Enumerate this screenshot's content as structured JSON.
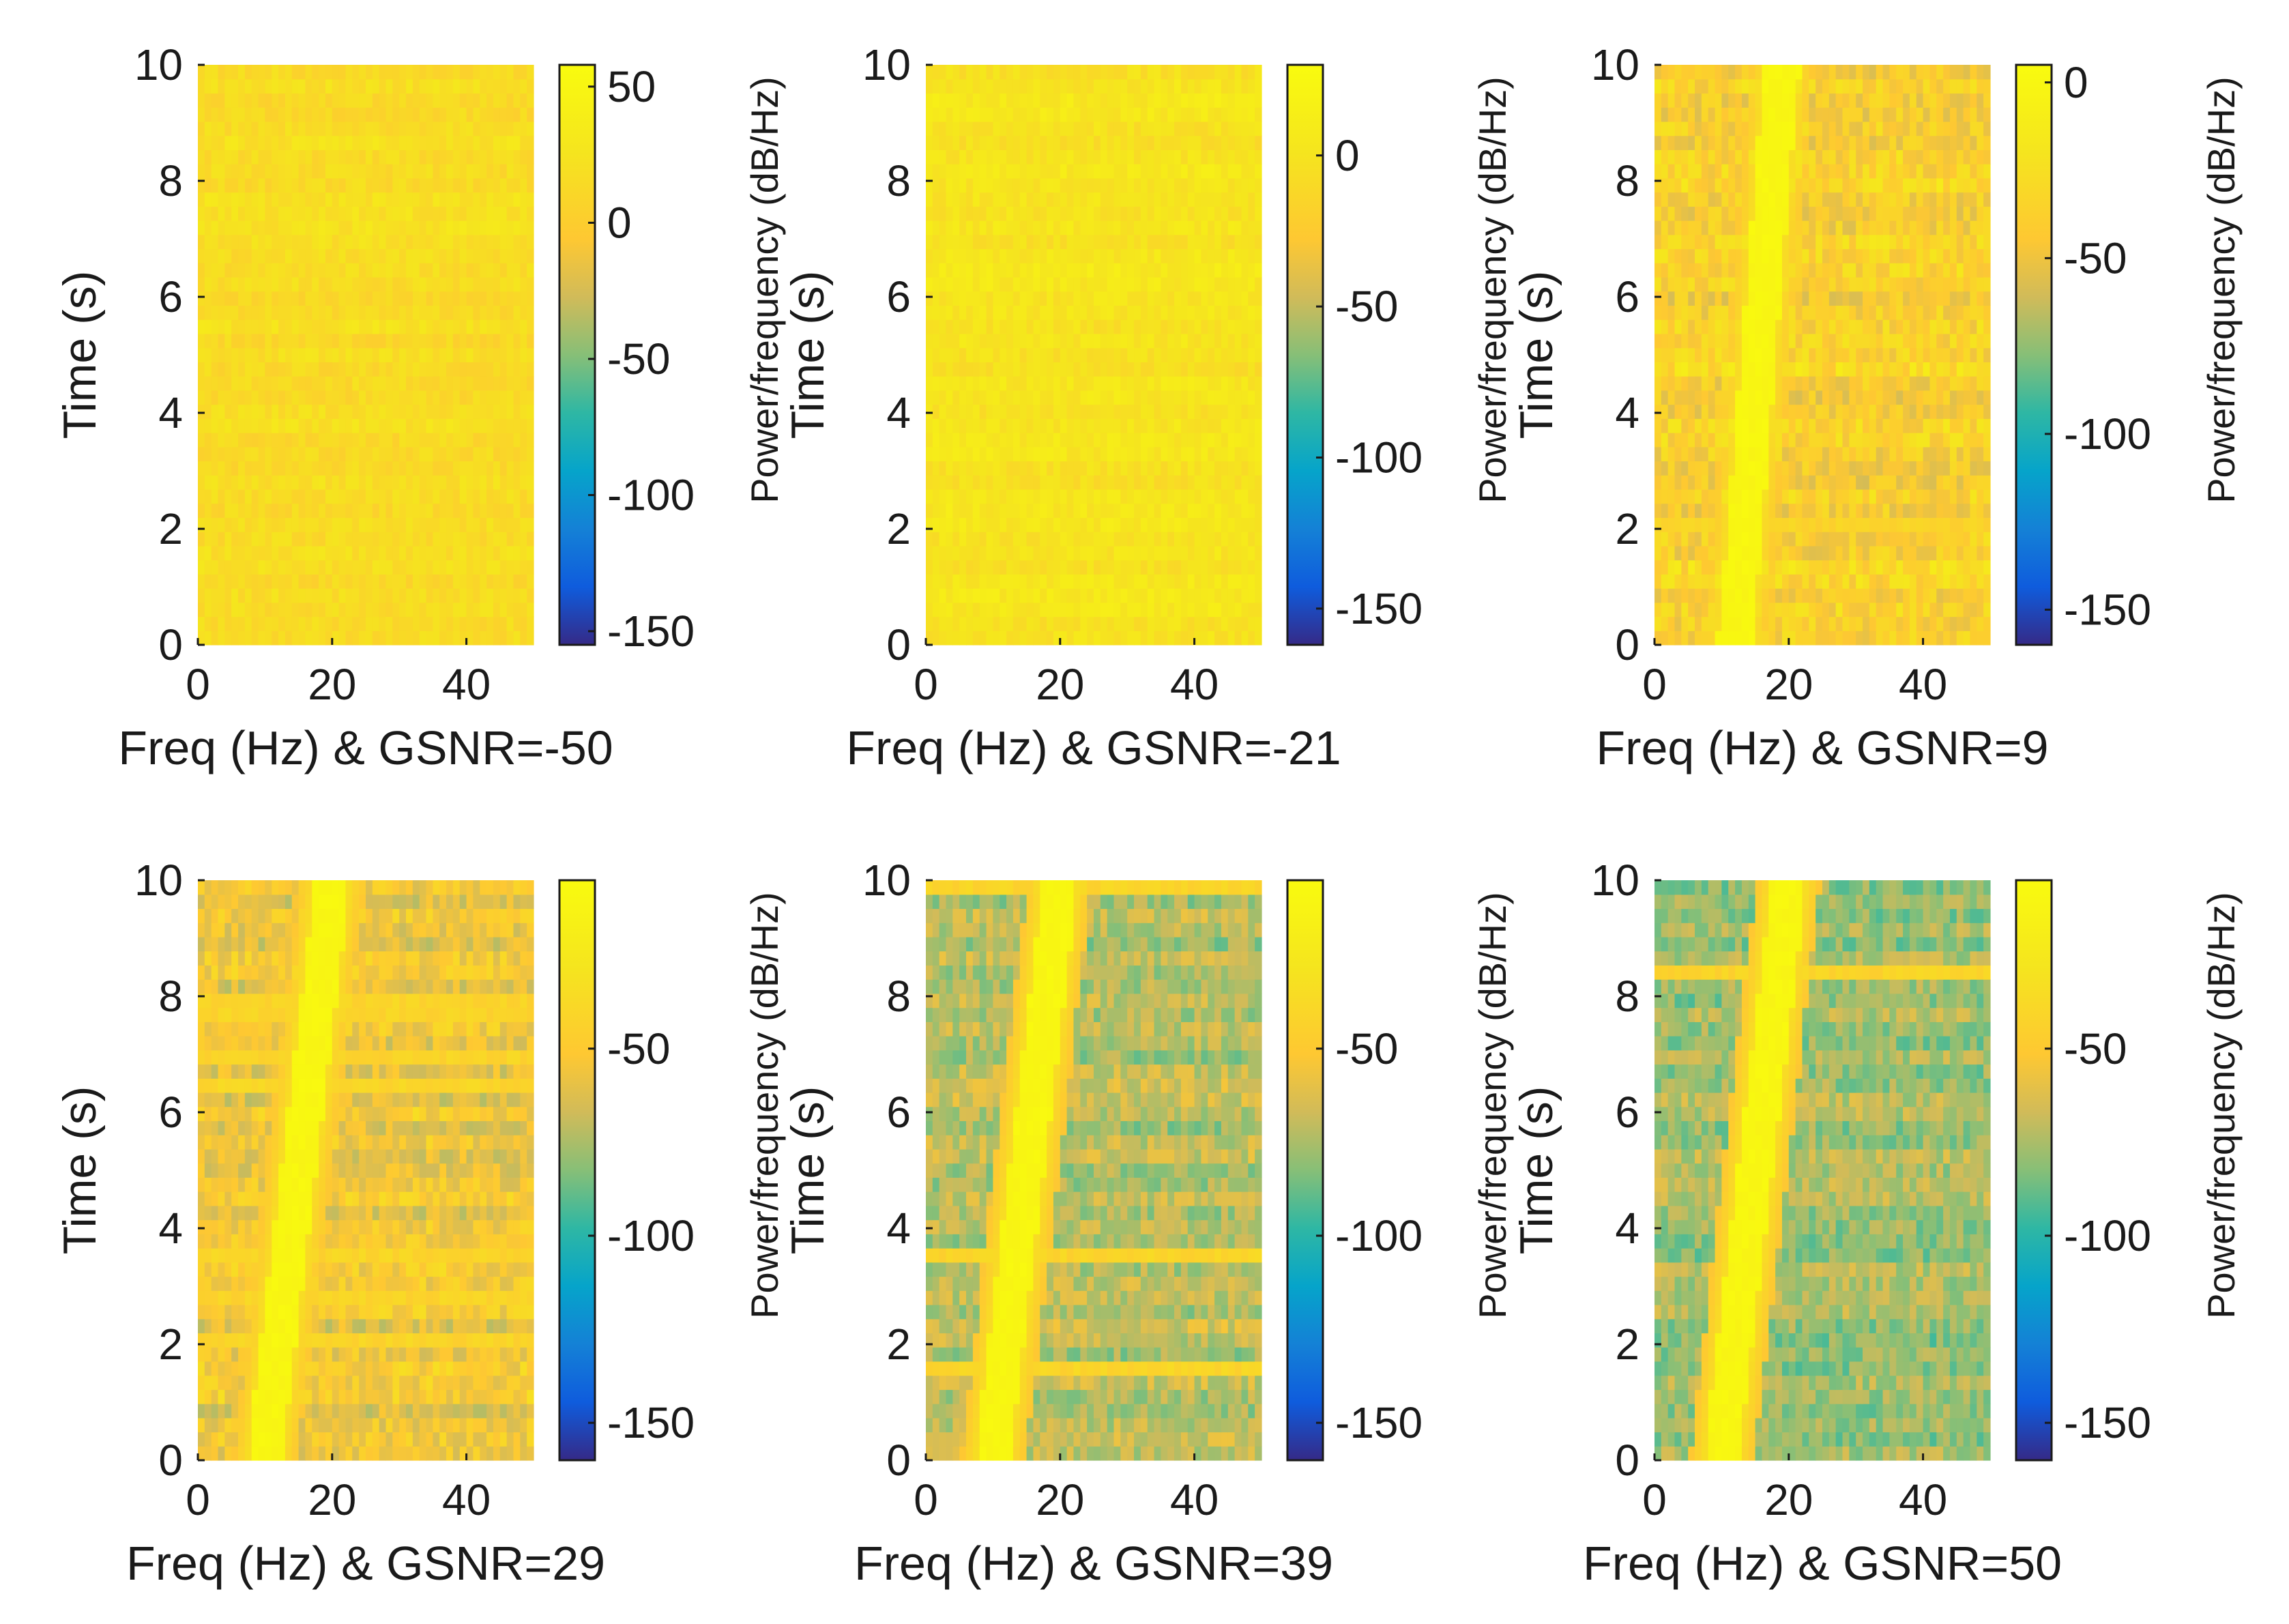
{
  "figure": {
    "ylabel": "Time (s)",
    "colorbar_label": "Power/frequency (dB/Hz)"
  },
  "chart_data": [
    {
      "type": "heatmap",
      "panel": 1,
      "xlabel": "Freq (Hz) & GSNR=-50",
      "ylabel": "Time (s)",
      "colorbar_label": "Power/frequency (dB/Hz)",
      "xlim": [
        0,
        50
      ],
      "ylim": [
        0,
        10
      ],
      "xticks": [
        0,
        20,
        40
      ],
      "yticks": [
        0,
        2,
        4,
        6,
        8,
        10
      ],
      "clim": [
        -155,
        58
      ],
      "cticks": [
        50,
        0,
        -50,
        -100,
        -150
      ],
      "chirp": {
        "f0": 10,
        "f1": 20,
        "visible": false
      },
      "mean_level_db": 28,
      "bright_rows_s": [
        9.0
      ]
    },
    {
      "type": "heatmap",
      "panel": 2,
      "xlabel": "Freq (Hz) & GSNR=-21",
      "ylabel": "Time (s)",
      "colorbar_label": "Power/frequency (dB/Hz)",
      "xlim": [
        0,
        50
      ],
      "ylim": [
        0,
        10
      ],
      "xticks": [
        0,
        20,
        40
      ],
      "yticks": [
        0,
        2,
        4,
        6,
        8,
        10
      ],
      "clim": [
        -162,
        30
      ],
      "cticks": [
        0,
        -50,
        -100,
        -150
      ],
      "chirp": {
        "f0": 10,
        "f1": 20,
        "visible": false
      },
      "mean_level_db": 8,
      "bright_rows_s": [
        2.5,
        5.8,
        7.0
      ]
    },
    {
      "type": "heatmap",
      "panel": 3,
      "xlabel": "Freq (Hz) & GSNR=9",
      "ylabel": "Time (s)",
      "colorbar_label": "Power/frequency (dB/Hz)",
      "xlim": [
        0,
        50
      ],
      "ylim": [
        0,
        10
      ],
      "xticks": [
        0,
        20,
        40
      ],
      "yticks": [
        0,
        2,
        4,
        6,
        8,
        10
      ],
      "clim": [
        -160,
        5
      ],
      "cticks": [
        0,
        -50,
        -100,
        -150
      ],
      "chirp": {
        "f0": 12,
        "f1": 19,
        "visible": true
      },
      "mean_level_db": -28,
      "bright_rows_s": [
        2.1
      ]
    },
    {
      "type": "heatmap",
      "panel": 4,
      "xlabel": "Freq (Hz) & GSNR=29",
      "ylabel": "Time (s)",
      "colorbar_label": "Power/frequency (dB/Hz)",
      "xlim": [
        0,
        50
      ],
      "ylim": [
        0,
        10
      ],
      "xticks": [
        0,
        20,
        40
      ],
      "yticks": [
        0,
        2,
        4,
        6,
        8,
        10
      ],
      "clim": [
        -160,
        -5
      ],
      "cticks": [
        -50,
        -100,
        -150
      ],
      "chirp": {
        "f0": 10,
        "f1": 20,
        "visible": true
      },
      "mean_level_db": -45,
      "bright_rows_s": [
        2.1,
        2.8,
        3.5,
        6.4,
        7.0,
        7.8
      ]
    },
    {
      "type": "heatmap",
      "panel": 5,
      "xlabel": "Freq (Hz) & GSNR=39",
      "ylabel": "Time (s)",
      "colorbar_label": "Power/frequency (dB/Hz)",
      "xlim": [
        0,
        50
      ],
      "ylim": [
        0,
        10
      ],
      "xticks": [
        0,
        20,
        40
      ],
      "yticks": [
        0,
        2,
        4,
        6,
        8,
        10
      ],
      "clim": [
        -160,
        -5
      ],
      "cticks": [
        -50,
        -100,
        -150
      ],
      "chirp": {
        "f0": 10,
        "f1": 20,
        "visible": true
      },
      "mean_level_db": -62,
      "bright_rows_s": [
        1.6,
        3.5,
        9.9
      ]
    },
    {
      "type": "heatmap",
      "panel": 6,
      "xlabel": "Freq (Hz) & GSNR=50",
      "ylabel": "Time (s)",
      "colorbar_label": "Power/frequency (dB/Hz)",
      "xlim": [
        0,
        50
      ],
      "ylim": [
        0,
        10
      ],
      "xticks": [
        0,
        20,
        40
      ],
      "yticks": [
        0,
        2,
        4,
        6,
        8,
        10
      ],
      "clim": [
        -160,
        -5
      ],
      "cticks": [
        -50,
        -100,
        -150
      ],
      "chirp": {
        "f0": 10,
        "f1": 20,
        "visible": true
      },
      "mean_level_db": -68,
      "bright_rows_s": [
        8.4
      ]
    }
  ]
}
